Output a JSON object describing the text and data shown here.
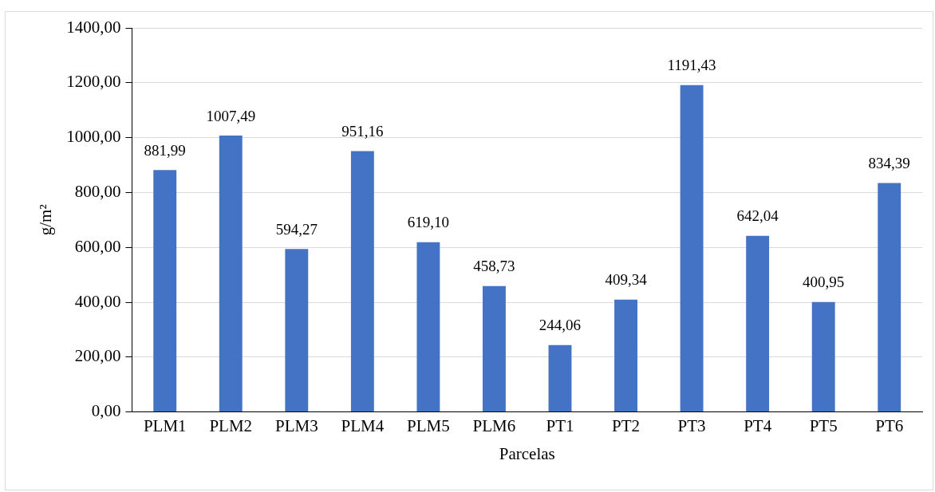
{
  "chart_data": {
    "type": "bar",
    "xlabel": "Parcelas",
    "ylabel": "g/m²",
    "categories": [
      "PLM1",
      "PLM2",
      "PLM3",
      "PLM4",
      "PLM5",
      "PLM6",
      "PT1",
      "PT2",
      "PT3",
      "PT4",
      "PT5",
      "PT6"
    ],
    "values": [
      881.99,
      1007.49,
      594.27,
      951.16,
      619.1,
      458.73,
      244.06,
      409.34,
      1191.43,
      642.04,
      400.95,
      834.39
    ],
    "value_labels": [
      "881,99",
      "1007,49",
      "594,27",
      "951,16",
      "619,10",
      "458,73",
      "244,06",
      "409,34",
      "1191,43",
      "642,04",
      "400,95",
      "834,39"
    ],
    "color": "#4472c4",
    "ylim": [
      0,
      1400
    ],
    "yticks": [
      {
        "value": 0,
        "label": "0,00"
      },
      {
        "value": 200,
        "label": "200,00"
      },
      {
        "value": 400,
        "label": "400,00"
      },
      {
        "value": 600,
        "label": "600,00"
      },
      {
        "value": 800,
        "label": "800,00"
      },
      {
        "value": 1000,
        "label": "1000,00"
      },
      {
        "value": 1200,
        "label": "1200,00"
      },
      {
        "value": 1400,
        "label": "1400,00"
      }
    ],
    "grid": "y",
    "legend": false
  }
}
